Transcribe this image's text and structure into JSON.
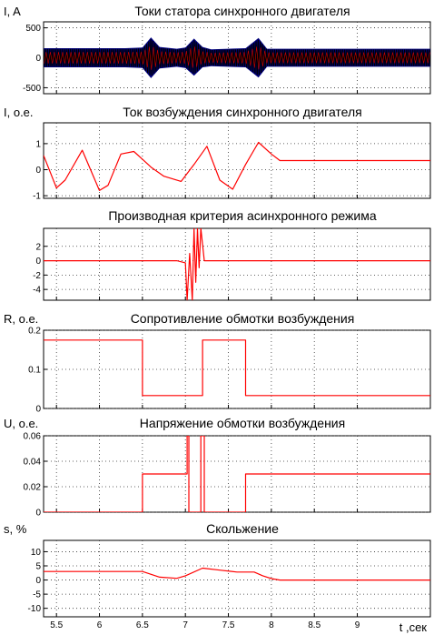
{
  "figure": {
    "xlabel": "t ,сек",
    "x_ticks": [
      "5.5",
      "6",
      "6.5",
      "7",
      "7.5",
      "8",
      "8.5",
      "9"
    ],
    "xlim": [
      5.35,
      9.85
    ]
  },
  "colors": {
    "series": "#ff0000",
    "series_fill": "#000080",
    "frame": "#000000"
  },
  "chart_data": [
    {
      "type": "line",
      "title": "Токи статора синхронного двигателя",
      "ylabel": "I, A",
      "ylim": [
        -600,
        600
      ],
      "y_ticks": [
        -500,
        0,
        500
      ],
      "y_tick_labels": [
        "-500",
        "0",
        "500"
      ],
      "series": [
        {
          "color": "#000080",
          "fill": true,
          "x": [
            5.35,
            5.5,
            6.0,
            6.3,
            6.5,
            6.6,
            6.7,
            6.9,
            7.0,
            7.1,
            7.2,
            7.3,
            7.5,
            7.7,
            7.85,
            7.95,
            8.1,
            8.5,
            9.0,
            9.85
          ],
          "upper": [
            160,
            160,
            160,
            160,
            170,
            340,
            180,
            150,
            170,
            320,
            180,
            140,
            150,
            160,
            330,
            150,
            150,
            150,
            150,
            150
          ],
          "lower": [
            -160,
            -160,
            -160,
            -160,
            -170,
            -340,
            -180,
            -150,
            -170,
            -300,
            -160,
            -140,
            -150,
            -160,
            -330,
            -150,
            -150,
            -150,
            -150,
            -150
          ]
        }
      ]
    },
    {
      "type": "line",
      "title": "Ток возбуждения синхронного двигателя",
      "ylabel": "I, о.е.",
      "ylim": [
        -1.1,
        1.8
      ],
      "y_ticks": [
        -1,
        0,
        1
      ],
      "y_tick_labels": [
        "-1",
        "0",
        "1"
      ],
      "series": [
        {
          "color": "#ff0000",
          "x": [
            5.35,
            5.5,
            5.6,
            5.8,
            6.0,
            6.1,
            6.25,
            6.4,
            6.5,
            6.6,
            6.75,
            6.95,
            7.1,
            7.25,
            7.4,
            7.55,
            7.7,
            7.85,
            8.0,
            8.1,
            8.3,
            9.85
          ],
          "y": [
            0.55,
            -0.7,
            -0.4,
            0.75,
            -0.8,
            -0.6,
            0.6,
            0.7,
            0.4,
            0.1,
            -0.25,
            -0.45,
            0.2,
            0.9,
            -0.4,
            -0.75,
            0.2,
            1.05,
            0.6,
            0.35,
            0.35,
            0.35
          ]
        }
      ]
    },
    {
      "type": "line",
      "title": "Производная критерия асинхронного режима",
      "ylabel": "",
      "ylim": [
        -5.5,
        4.5
      ],
      "y_ticks": [
        -4,
        -2,
        0,
        2
      ],
      "y_tick_labels": [
        "-4",
        "-2",
        "0",
        "2"
      ],
      "series": [
        {
          "color": "#ff0000",
          "x": [
            5.35,
            6.5,
            6.9,
            7.0,
            7.02,
            7.05,
            7.08,
            7.1,
            7.12,
            7.14,
            7.16,
            7.18,
            7.22,
            7.35,
            9.85
          ],
          "y": [
            0,
            0,
            0,
            -0.3,
            -5.5,
            1.0,
            -5.5,
            4.5,
            -3.0,
            4.5,
            -1.0,
            4.5,
            0,
            0,
            0
          ]
        }
      ]
    },
    {
      "type": "line",
      "title": "Сопротивление обмотки возбуждения",
      "ylabel": "R, о.е.",
      "ylim": [
        0,
        0.2
      ],
      "y_ticks": [
        0,
        0.1,
        0.2
      ],
      "y_tick_labels": [
        "0",
        "0.1",
        "0.2"
      ],
      "series": [
        {
          "color": "#ff0000",
          "x": [
            5.35,
            6.5,
            6.5,
            7.2,
            7.2,
            7.7,
            7.7,
            9.85
          ],
          "y": [
            0.175,
            0.175,
            0.033,
            0.033,
            0.175,
            0.175,
            0.033,
            0.033
          ]
        }
      ]
    },
    {
      "type": "line",
      "title": "Напряжение обмотки возбуждения",
      "ylabel": "U, о.е.",
      "ylim": [
        0,
        0.06
      ],
      "y_ticks": [
        0,
        0.02,
        0.04,
        0.06
      ],
      "y_tick_labels": [
        "0",
        "0.02",
        "0.04",
        "0.06"
      ],
      "series": [
        {
          "color": "#ff0000",
          "x": [
            5.35,
            6.5,
            6.5,
            7.02,
            7.02,
            7.04,
            7.04,
            7.18,
            7.18,
            7.22,
            7.22,
            7.7,
            7.7,
            9.85
          ],
          "y": [
            0,
            0,
            0.03,
            0.03,
            0.06,
            0.06,
            0,
            0,
            0.06,
            0.06,
            0,
            0,
            0.03,
            0.03
          ]
        }
      ]
    },
    {
      "type": "line",
      "title": "Скольжение",
      "ylabel": "s, %",
      "ylim": [
        -13,
        14
      ],
      "y_ticks": [
        -10,
        -5,
        0,
        5,
        10
      ],
      "y_tick_labels": [
        "-10",
        "-5",
        "0",
        "5",
        "10"
      ],
      "series": [
        {
          "color": "#ff0000",
          "x": [
            5.35,
            6.5,
            6.7,
            6.9,
            7.0,
            7.2,
            7.4,
            7.6,
            7.8,
            7.9,
            8.0,
            8.1,
            9.85
          ],
          "y": [
            3,
            3,
            1,
            0.6,
            1.5,
            4.2,
            3.5,
            2.8,
            2.8,
            1.5,
            0.5,
            0,
            0
          ]
        }
      ]
    }
  ]
}
